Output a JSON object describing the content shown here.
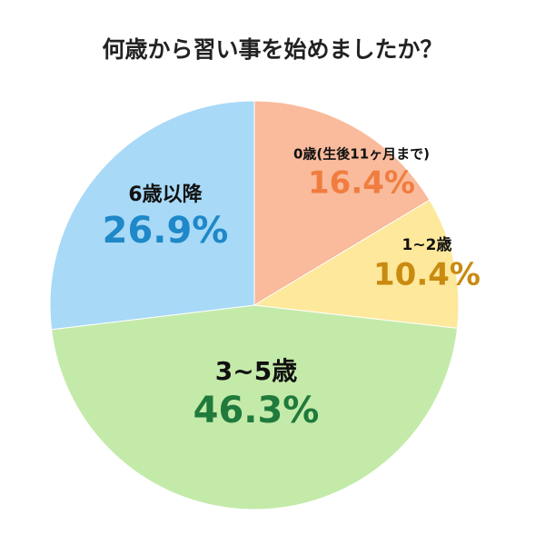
{
  "chart_data": {
    "type": "pie",
    "title": "何歳から習い事を始めましたか？",
    "categories": [
      "0歳(生後11ヶ月まで)",
      "1~2歳",
      "3~5歳",
      "6歳以降"
    ],
    "values": [
      16.4,
      10.4,
      46.3,
      26.9
    ],
    "value_labels": [
      "16.4%",
      "10.4%",
      "46.3%",
      "26.9%"
    ],
    "colors": [
      "#f9bb9c",
      "#fde89b",
      "#c4eaa9",
      "#a8d9f7"
    ],
    "label_colors": [
      "#f07d3f",
      "#c98a10",
      "#1f7a3c",
      "#1e88c8"
    ]
  }
}
